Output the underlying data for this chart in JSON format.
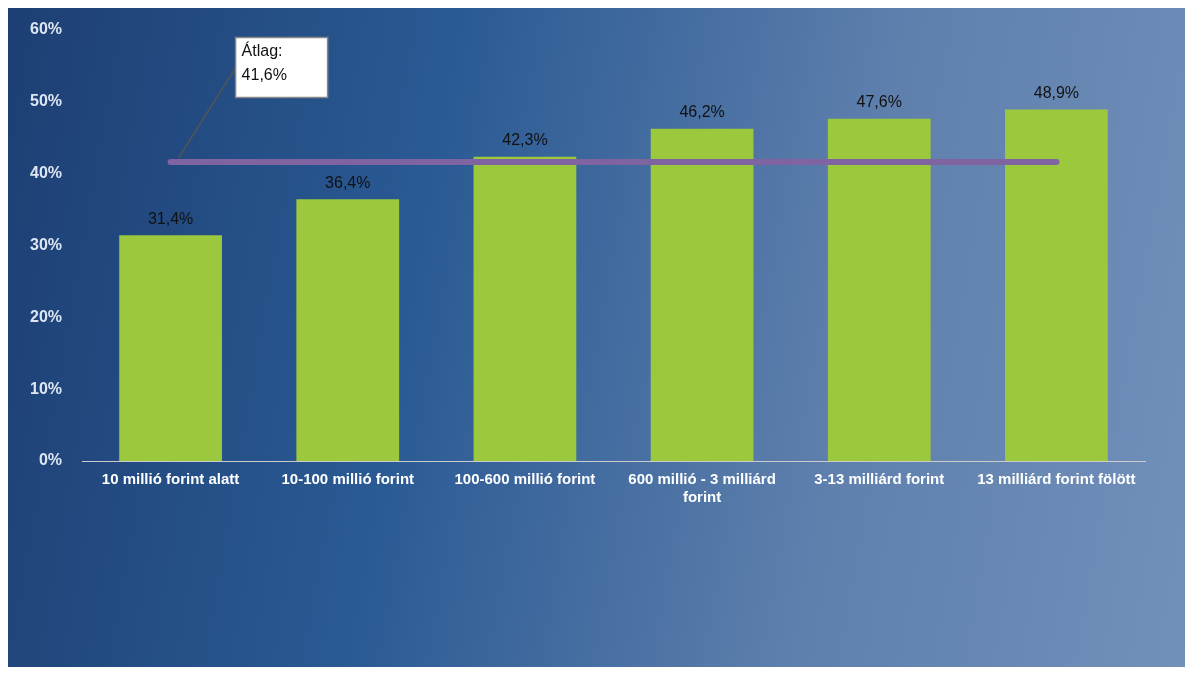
{
  "chart_data": {
    "type": "bar",
    "categories": [
      "10 millió forint alatt",
      "10-100 millió forint",
      "100-600 millió forint",
      "600 millió - 3 milliárd forint",
      "3-13 milliárd forint",
      "13 milliárd forint fölött"
    ],
    "values": [
      31.4,
      36.4,
      42.3,
      46.2,
      47.6,
      48.9
    ],
    "value_labels": [
      "31,4%",
      "36,4%",
      "42,3%",
      "46,2%",
      "47,6%",
      "48,9%"
    ],
    "color": "#9bc83c",
    "ylim": [
      0,
      60
    ],
    "yticks": [
      {
        "value": 0,
        "label": "0%"
      },
      {
        "value": 10,
        "label": "10%"
      },
      {
        "value": 20,
        "label": "20%"
      },
      {
        "value": 30,
        "label": "30%"
      },
      {
        "value": 40,
        "label": "40%"
      },
      {
        "value": 50,
        "label": "50%"
      },
      {
        "value": 60,
        "label": "60%"
      }
    ],
    "ref_lines": [
      {
        "axis": "y",
        "value": 41.6,
        "label": "Átlag: 41,6%",
        "color": "#8064a2"
      }
    ],
    "grid": false,
    "legend": false
  }
}
